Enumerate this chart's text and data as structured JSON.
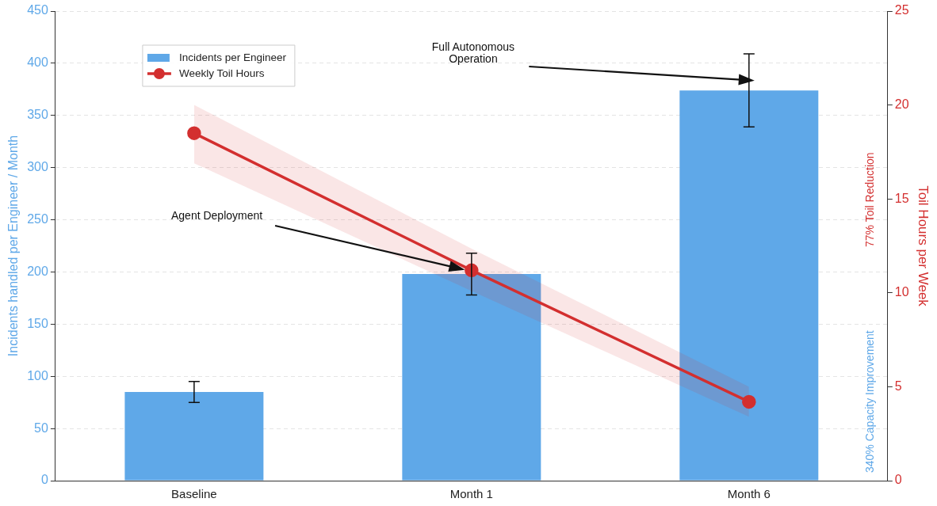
{
  "chart_data": {
    "type": "bar",
    "categories": [
      "Baseline",
      "Month 1",
      "Month 6"
    ],
    "ylabel": "Incidents handled per Engineer / Month",
    "y2label": "Toil Hours per Week",
    "ylim": [
      0,
      450
    ],
    "yticks": [
      0,
      50,
      100,
      150,
      200,
      250,
      300,
      350,
      400,
      450
    ],
    "y2lim": [
      0,
      25
    ],
    "y2ticks": [
      0,
      5,
      10,
      15,
      20,
      25
    ],
    "series": [
      {
        "name": "Incidents per Engineer",
        "color": "#5fa8e8",
        "values": [
          85,
          198,
          374
        ],
        "errors": [
          10,
          20,
          35
        ]
      },
      {
        "name": "Weekly Toil Hours",
        "type": "line",
        "axis": "y2",
        "color": "#d32f2f",
        "values": [
          18.5,
          11.2,
          4.2
        ],
        "lower": [
          16.9,
          10.1,
          3.4
        ],
        "upper": [
          20.0,
          12.35,
          5.0
        ],
        "marker": "circle"
      }
    ],
    "annotations": [
      "340% Capacity Improvement",
      "77% Toil Reduction",
      "Agent Deployment",
      "Full Autonomous Operation"
    ],
    "grid": "y",
    "legend": "top left"
  }
}
